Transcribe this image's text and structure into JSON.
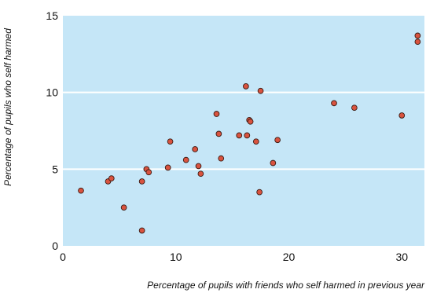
{
  "chart_data": {
    "type": "scatter",
    "title": "",
    "xlabel": "Percentage of pupils with friends who self harmed in previous year",
    "ylabel": "Percentage of pupils who self harmed",
    "xlim": [
      0,
      32
    ],
    "ylim": [
      0,
      15
    ],
    "xticks": [
      "0",
      "10",
      "20",
      "30"
    ],
    "yticks": [
      "0",
      "5",
      "10",
      "15"
    ],
    "grid": "horizontal",
    "colors": {
      "plot_background": "#c5e6f7",
      "point_fill": "#d9533f",
      "point_stroke": "#3a1a12",
      "gridline": "#ffffff"
    },
    "points": [
      {
        "x": 1.6,
        "y": 3.6
      },
      {
        "x": 4.0,
        "y": 4.2
      },
      {
        "x": 4.3,
        "y": 4.4
      },
      {
        "x": 5.4,
        "y": 2.5
      },
      {
        "x": 7.0,
        "y": 4.2
      },
      {
        "x": 7.4,
        "y": 5.0
      },
      {
        "x": 7.6,
        "y": 4.8
      },
      {
        "x": 7.0,
        "y": 1.0
      },
      {
        "x": 9.3,
        "y": 5.1
      },
      {
        "x": 9.5,
        "y": 6.8
      },
      {
        "x": 10.9,
        "y": 5.6
      },
      {
        "x": 11.7,
        "y": 6.3
      },
      {
        "x": 12.0,
        "y": 5.2
      },
      {
        "x": 12.2,
        "y": 4.7
      },
      {
        "x": 13.6,
        "y": 8.6
      },
      {
        "x": 13.8,
        "y": 7.3
      },
      {
        "x": 14.0,
        "y": 5.7
      },
      {
        "x": 15.6,
        "y": 7.2
      },
      {
        "x": 16.2,
        "y": 10.4
      },
      {
        "x": 16.3,
        "y": 7.2
      },
      {
        "x": 16.5,
        "y": 8.2
      },
      {
        "x": 16.6,
        "y": 8.1
      },
      {
        "x": 17.1,
        "y": 6.8
      },
      {
        "x": 17.4,
        "y": 3.5
      },
      {
        "x": 17.5,
        "y": 10.1
      },
      {
        "x": 18.6,
        "y": 5.4
      },
      {
        "x": 19.0,
        "y": 6.9
      },
      {
        "x": 24.0,
        "y": 9.3
      },
      {
        "x": 25.8,
        "y": 9.0
      },
      {
        "x": 30.0,
        "y": 8.5
      },
      {
        "x": 31.4,
        "y": 13.7
      },
      {
        "x": 31.4,
        "y": 13.3
      }
    ]
  }
}
